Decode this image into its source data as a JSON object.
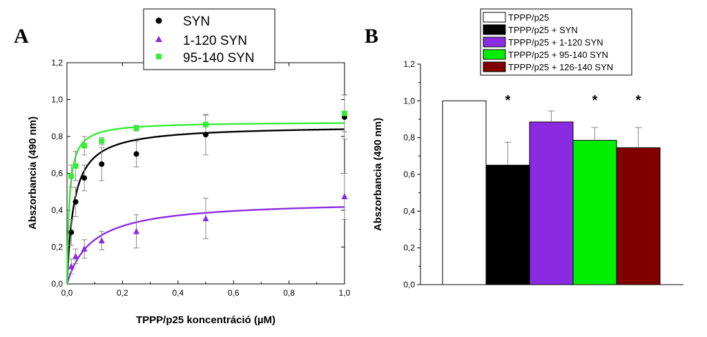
{
  "chart_data": [
    {
      "panel": "A",
      "type": "scatter",
      "xlabel": "TPPP/p25 koncentráció (µM)",
      "ylabel": "Abszorbancia (490 nm)",
      "xlim": [
        0,
        1.0
      ],
      "ylim": [
        0,
        1.2
      ],
      "xticks": [
        "0,0",
        "0,2",
        "0,4",
        "0,6",
        "0,8",
        "1,0"
      ],
      "yticks": [
        "0,0",
        "0,2",
        "0,4",
        "0,6",
        "0,8",
        "1,0",
        "1,2"
      ],
      "legend_position": "top",
      "series": [
        {
          "name": "SYN",
          "color": "#000000",
          "marker": "circle",
          "x": [
            0.0156,
            0.0312,
            0.0625,
            0.125,
            0.25,
            0.5,
            1.0
          ],
          "y": [
            0.28,
            0.445,
            0.575,
            0.65,
            0.705,
            0.81,
            0.905
          ],
          "err": [
            0.07,
            0.08,
            0.07,
            0.09,
            0.07,
            0.11,
            0.12
          ],
          "fit": {
            "vmax": 0.86,
            "kd": 0.025
          }
        },
        {
          "name": "1-120 SYN",
          "color": "#8a2be2",
          "marker": "triangle",
          "x": [
            0.0156,
            0.0312,
            0.0625,
            0.125,
            0.25,
            0.5,
            1.0
          ],
          "y": [
            0.095,
            0.15,
            0.19,
            0.235,
            0.285,
            0.355,
            0.475
          ],
          "err": [
            0.04,
            0.04,
            0.05,
            0.05,
            0.09,
            0.11,
            0.125
          ],
          "fit": {
            "vmax": 0.455,
            "kd": 0.09
          }
        },
        {
          "name": "95-140 SYN",
          "color": "#33ee33",
          "marker": "square",
          "x": [
            0.0156,
            0.0312,
            0.0625,
            0.125,
            0.25,
            0.5,
            1.0
          ],
          "y": [
            0.585,
            0.64,
            0.75,
            0.775,
            0.845,
            0.865,
            0.925
          ],
          "err": [
            0.06,
            0.08,
            0.05,
            0.02,
            0.015,
            0.05,
            0.1
          ],
          "fit": {
            "vmax": 0.88,
            "kd": 0.0085
          }
        }
      ]
    },
    {
      "panel": "B",
      "type": "bar",
      "ylabel": "Abszorbancia (490 nm)",
      "ylim": [
        0,
        1.2
      ],
      "yticks": [
        "0,0",
        "0,2",
        "0,4",
        "0,6",
        "0,8",
        "1,0",
        "1,2"
      ],
      "legend_position": "top",
      "categories": [
        "TPPP/p25",
        "TPPP/p25 + SYN",
        "TPPP/p25 + 1-120 SYN",
        "TPPP/p25 + 95-140 SYN",
        "TPPP/p25 + 126-140 SYN"
      ],
      "values": [
        1.0,
        0.65,
        0.885,
        0.785,
        0.745
      ],
      "errors": [
        0,
        0.125,
        0.06,
        0.07,
        0.11
      ],
      "colors": [
        "#ffffff",
        "#000000",
        "#8a2be2",
        "#00ee00",
        "#800000"
      ],
      "significance": [
        "",
        "*",
        "",
        "*",
        "*"
      ]
    }
  ]
}
